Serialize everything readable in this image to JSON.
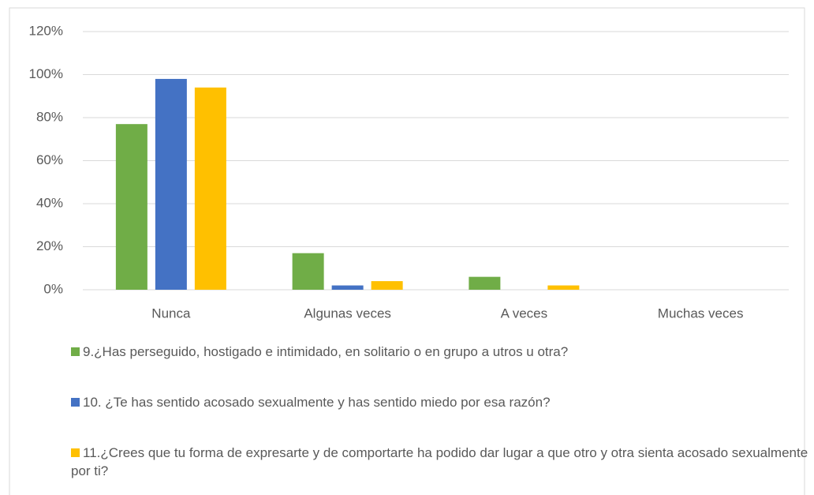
{
  "chart_data": {
    "type": "bar",
    "categories": [
      "Nunca",
      "Algunas veces",
      "A veces",
      "Muchas veces"
    ],
    "series": [
      {
        "name": "9.¿Has perseguido, hostigado e intimidado, en solitario o en grupo a utros u otra?",
        "color": "#70ad47",
        "values": [
          77,
          17,
          6,
          0
        ]
      },
      {
        "name": "10. ¿Te has sentido acosado sexualmente y has sentido miedo por esa razón?",
        "color": "#4472c4",
        "values": [
          98,
          2,
          0,
          0
        ]
      },
      {
        "name": "11.¿Crees que tu forma de expresarte y de comportarte ha podido dar lugar a que otro y otra sienta acosado sexualmente por ti?",
        "color": "#ffc000",
        "values": [
          94,
          4,
          2,
          0
        ]
      }
    ],
    "ylim": [
      0,
      120
    ],
    "yticks": [
      {
        "value": 0,
        "label": "0%"
      },
      {
        "value": 20,
        "label": "20%"
      },
      {
        "value": 40,
        "label": "40%"
      },
      {
        "value": 60,
        "label": "60%"
      },
      {
        "value": 80,
        "label": "80%"
      },
      {
        "value": 100,
        "label": "100%"
      },
      {
        "value": 120,
        "label": "120%"
      }
    ],
    "grid": true,
    "legend": "bottom"
  }
}
